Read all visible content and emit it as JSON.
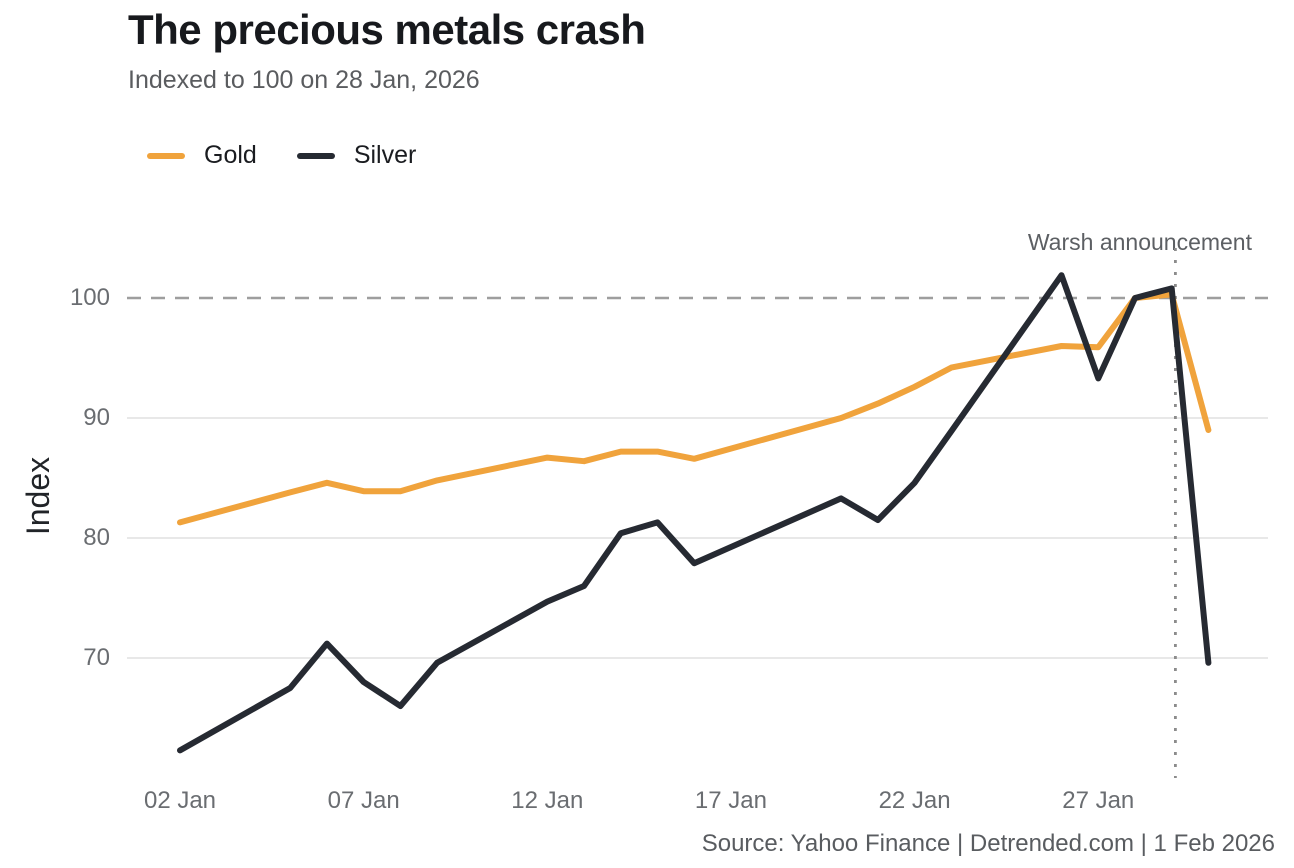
{
  "header": {
    "title": "The precious metals crash",
    "subtitle": "Indexed to 100 on 28 Jan, 2026"
  },
  "source_note": "Source: Yahoo Finance | Detrended.com | 1 Feb 2026",
  "chart_data": {
    "type": "line",
    "title": "The precious metals crash",
    "subtitle": "Indexed to 100 on 28 Jan, 2026",
    "ylabel": "Index",
    "x_axis": {
      "unit": "date, January 2026 (weekday closes)",
      "tick_labels": [
        "02 Jan",
        "07 Jan",
        "12 Jan",
        "17 Jan",
        "22 Jan",
        "27 Jan"
      ],
      "tick_days": [
        2,
        7,
        12,
        17,
        22,
        27
      ]
    },
    "y_axis": {
      "ticks": [
        70,
        80,
        90,
        100
      ],
      "range": [
        60,
        104.5
      ],
      "grid": "horizontal light gray; 100 level drawn as gray dashed reference line"
    },
    "x_days": [
      2,
      5,
      6,
      7,
      8,
      9,
      12,
      13,
      14,
      15,
      16,
      20,
      21,
      22,
      23,
      26,
      27,
      28,
      29,
      30
    ],
    "series": [
      {
        "name": "Gold",
        "color": "#F0A33C",
        "values": [
          81.3,
          83.8,
          84.6,
          83.9,
          83.9,
          84.8,
          86.7,
          86.4,
          87.2,
          87.2,
          86.6,
          90.0,
          91.2,
          92.6,
          94.2,
          96.0,
          95.9,
          100.0,
          100.3,
          89.0
        ]
      },
      {
        "name": "Silver",
        "color": "#262A32",
        "values": [
          62.3,
          67.5,
          71.2,
          68.0,
          66.0,
          69.6,
          74.7,
          76.0,
          80.4,
          81.3,
          77.9,
          83.3,
          81.5,
          84.6,
          88.9,
          101.9,
          93.3,
          100.0,
          100.8,
          69.6
        ]
      }
    ],
    "reference_line": {
      "y": 100,
      "style": "dashed"
    },
    "annotation": {
      "label": "Warsh announcement",
      "day": 29.1,
      "style": "dotted vertical line"
    },
    "legend_position": "top-left"
  }
}
